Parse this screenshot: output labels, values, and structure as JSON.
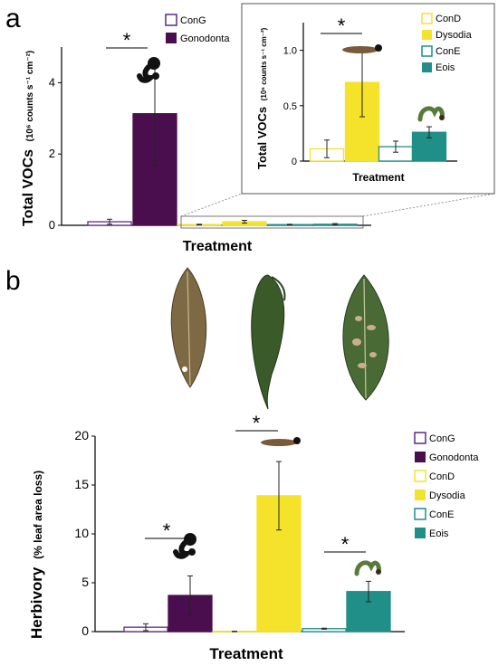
{
  "panel_labels": [
    "a",
    "b"
  ],
  "significance_marker": "*",
  "colors": {
    "ConG": "#ffffff",
    "ConG_edge": "#5a2a82",
    "Gonodonta": "#4a0e4e",
    "ConD": "#ffffff",
    "ConD_edge": "#f5e030",
    "Dysodia": "#f5e22b",
    "ConE": "#ffffff",
    "ConE_edge": "#1f8f87",
    "Eois": "#1f8f87"
  },
  "chart_data": [
    {
      "type": "bar",
      "panel": "a",
      "title": "",
      "xlabel": "Treatment",
      "ylabel_main": "Total VOCs",
      "ylabel_units": "(10⁶ counts s⁻¹ cm⁻²)",
      "ylim": [
        0,
        5
      ],
      "yticks": [
        "0",
        "2",
        "4"
      ],
      "legend": [
        "ConG",
        "Gonodonta"
      ],
      "categories": [
        "ConG",
        "Gonodonta",
        "ConD",
        "Dysodia",
        "ConE",
        "Eois"
      ],
      "values": [
        0.1,
        3.13,
        0.02,
        0.1,
        0.02,
        0.03
      ],
      "errors": [
        0.07,
        1.47,
        0.01,
        0.04,
        0.01,
        0.02
      ],
      "significance": "*"
    },
    {
      "type": "bar",
      "panel": "a-inset",
      "title": "",
      "xlabel": "Treatment",
      "ylabel_main": "Total VOCs",
      "ylabel_units": "(10⁶ counts s⁻¹ cm⁻²)",
      "ylim": [
        0,
        1.25
      ],
      "yticks": [
        "0",
        "0.5",
        "1.0"
      ],
      "legend": [
        "ConD",
        "Dysodia",
        "ConE",
        "Eois"
      ],
      "categories": [
        "ConD",
        "Dysodia",
        "ConE",
        "Eois"
      ],
      "values": [
        0.11,
        0.71,
        0.13,
        0.26
      ],
      "errors": [
        0.08,
        0.31,
        0.05,
        0.05
      ],
      "significance": "*"
    },
    {
      "type": "bar",
      "panel": "b",
      "title": "",
      "xlabel": "Treatment",
      "ylabel_main": "Herbivory",
      "ylabel_units": "(% leaf area loss)",
      "ylim": [
        0,
        20
      ],
      "yticks": [
        "0",
        "5",
        "10",
        "15",
        "20"
      ],
      "legend": [
        "ConG",
        "Gonodonta",
        "ConD",
        "Dysodia",
        "ConE",
        "Eois"
      ],
      "categories": [
        "ConG",
        "Gonodonta",
        "ConD",
        "Dysodia",
        "ConE",
        "Eois"
      ],
      "values": [
        0.45,
        3.7,
        0.02,
        13.9,
        0.3,
        4.1
      ],
      "errors": [
        0.35,
        2.0,
        0.02,
        3.5,
        0.05,
        1.05
      ],
      "significance_pairs": [
        "*",
        "*",
        "*"
      ]
    }
  ]
}
